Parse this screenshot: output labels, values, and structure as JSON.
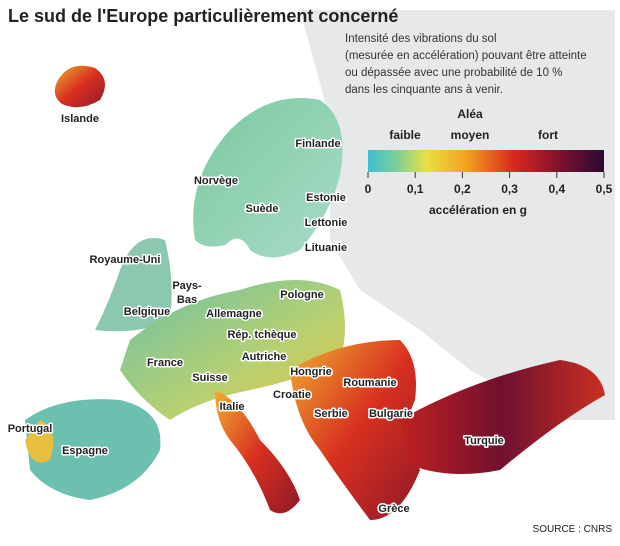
{
  "header": {
    "title": "Le sud de l'Europe particulièrement concerné"
  },
  "legend": {
    "description": [
      "Intensité des vibrations du sol",
      "(mesurée en accélération) pouvant être atteinte",
      "ou dépassée avec une probabilité de 10 %",
      "dans les cinquante ans à venir."
    ],
    "heading": "Aléa",
    "levels": [
      "faible",
      "moyen",
      "fort"
    ],
    "ticks": [
      0,
      {
        "value": 0.1,
        "label": "0,1"
      },
      {
        "value": 0.2,
        "label": "0,2"
      },
      {
        "value": 0.3,
        "label": "0,3"
      },
      {
        "value": 0.4,
        "label": "0,4"
      },
      {
        "value": 0.5,
        "label": "0,5"
      }
    ],
    "axis_label": "accélération en g"
  },
  "map": {
    "labels": [
      "Islande",
      "Finlande",
      "Norvège",
      "Suède",
      "Estonie",
      "Lettonie",
      "Lituanie",
      "Royaume-Uni",
      "Pays-",
      "Bas",
      "Belgique",
      "Allemagne",
      "Pologne",
      "Rép. tchèque",
      "France",
      "Autriche",
      "Hongrie",
      "Suisse",
      "Roumanie",
      "Italie",
      "Croatie",
      "Serbie",
      "Bulgarie",
      "Portugal",
      "Espagne",
      "Turquie",
      "Grèce"
    ]
  },
  "source": "SOURCE : CNRS"
}
